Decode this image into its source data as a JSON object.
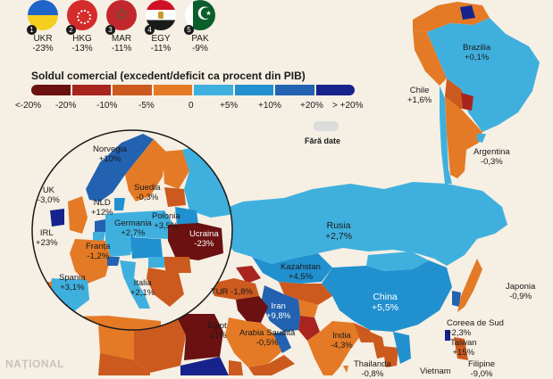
{
  "top_countries": [
    {
      "rank": "1",
      "code": "UKR",
      "value": "-23%",
      "flag": "ukraine-flag"
    },
    {
      "rank": "2",
      "code": "HKG",
      "value": "-13%",
      "flag": "hong-kong-flag"
    },
    {
      "rank": "3",
      "code": "MAR",
      "value": "-11%",
      "flag": "morocco-flag"
    },
    {
      "rank": "4",
      "code": "EGY",
      "value": "-11%",
      "flag": "egypt-flag"
    },
    {
      "rank": "5",
      "code": "PAK",
      "value": "-9%",
      "flag": "pakistan-flag"
    }
  ],
  "legend": {
    "title": "Soldul comercial (excedent/deficit ca procent din PIB)",
    "colors": [
      "#6b1111",
      "#a8241e",
      "#cc5a1e",
      "#e47a26",
      "#3fb0de",
      "#2190cf",
      "#2262b0",
      "#16238c"
    ],
    "ticks": [
      "<-20%",
      "-20%",
      "-10%",
      "-5%",
      "0",
      "+5%",
      "+10%",
      "+20%",
      "> +20%"
    ],
    "no_data_label": "Fără date",
    "no_data_color": "#dcdcdc"
  },
  "labels": {
    "brazilia": {
      "name": "Brazilia",
      "value": "+0,1%"
    },
    "chile": {
      "name": "Chile",
      "value": "+1,6%"
    },
    "argentina": {
      "name": "Argentina",
      "value": "-0,3%"
    },
    "norvegia": {
      "name": "Norvegia",
      "value": "+10%"
    },
    "suedia": {
      "name": "Suedia",
      "value": "-0,3%"
    },
    "uk": {
      "name": "UK",
      "value": "-3,0%"
    },
    "nld": {
      "name": "NLD",
      "value": "+12%"
    },
    "germania": {
      "name": "Germania",
      "value": "+2,7%"
    },
    "polonia": {
      "name": "Polonia",
      "value": "+3,5%"
    },
    "ucraina": {
      "name": "Ucraina",
      "value": "-23%"
    },
    "irl": {
      "name": "IRL",
      "value": "+23%"
    },
    "franta": {
      "name": "Franța",
      "value": "-1,2%"
    },
    "spania": {
      "name": "Spania",
      "value": "+3,1%"
    },
    "italia": {
      "name": "Italia",
      "value": "+2,1%"
    },
    "rusia": {
      "name": "Rusia",
      "value": "+2,7%"
    },
    "kazahstan": {
      "name": "Kazahstan",
      "value": "+4,5%"
    },
    "china": {
      "name": "China",
      "value": "+5,5%"
    },
    "japonia": {
      "name": "Japonia",
      "value": "-0,9%"
    },
    "tur": {
      "name": "TUR",
      "value": "-1,8%"
    },
    "iran": {
      "name": "Iran",
      "value": "+9,8%"
    },
    "egipt": {
      "name": "Egipt",
      "value": "-11%"
    },
    "arabia": {
      "name": "Arabia Saudită",
      "value": "-0,5%"
    },
    "india": {
      "name": "India",
      "value": "-4,3%"
    },
    "coreea": {
      "name": "Coreea de Sud",
      "value": "+2,3%"
    },
    "taiwan": {
      "name": "Taiwan",
      "value": "+15%"
    },
    "thailanda": {
      "name": "Thailanda",
      "value": "-0,8%"
    },
    "vietnam": {
      "name": "Vietnam",
      "value": ""
    },
    "filipine": {
      "name": "Filipine",
      "value": "-9,0%"
    }
  },
  "brand": "NAȚIONAL"
}
